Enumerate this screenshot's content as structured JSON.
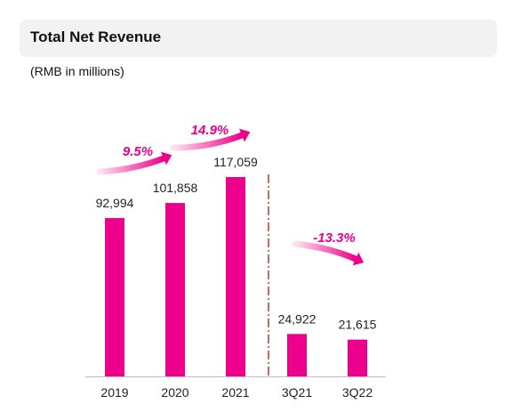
{
  "header": {
    "title": "Total Net Revenue",
    "unit": "(RMB in millions)"
  },
  "colors": {
    "bar": "#ec008c",
    "growth_label": "#ec008c",
    "divider": "#c0392b",
    "arrow_start": "#fde3ef",
    "arrow_end": "#ec008c",
    "axis": "#bfbfbf"
  },
  "chart_data": {
    "type": "bar",
    "title": "Total Net Revenue",
    "ylabel": "(RMB in millions)",
    "xlabel": "",
    "categories": [
      "2019",
      "2020",
      "2021",
      "3Q21",
      "3Q22"
    ],
    "values": [
      92994,
      101858,
      117059,
      24922,
      21615
    ],
    "value_labels": [
      "92,994",
      "101,858",
      "117,059",
      "24,922",
      "21,615"
    ],
    "ylim": [
      0,
      120000
    ],
    "grid": false,
    "legend": "none",
    "growth_annotations": [
      {
        "label": "9.5%",
        "from": "2019",
        "to": "2020"
      },
      {
        "label": "14.9%",
        "from": "2020",
        "to": "2021"
      },
      {
        "label": "-13.3%",
        "from": "3Q21",
        "to": "3Q22"
      }
    ],
    "divider_after": "2021"
  }
}
